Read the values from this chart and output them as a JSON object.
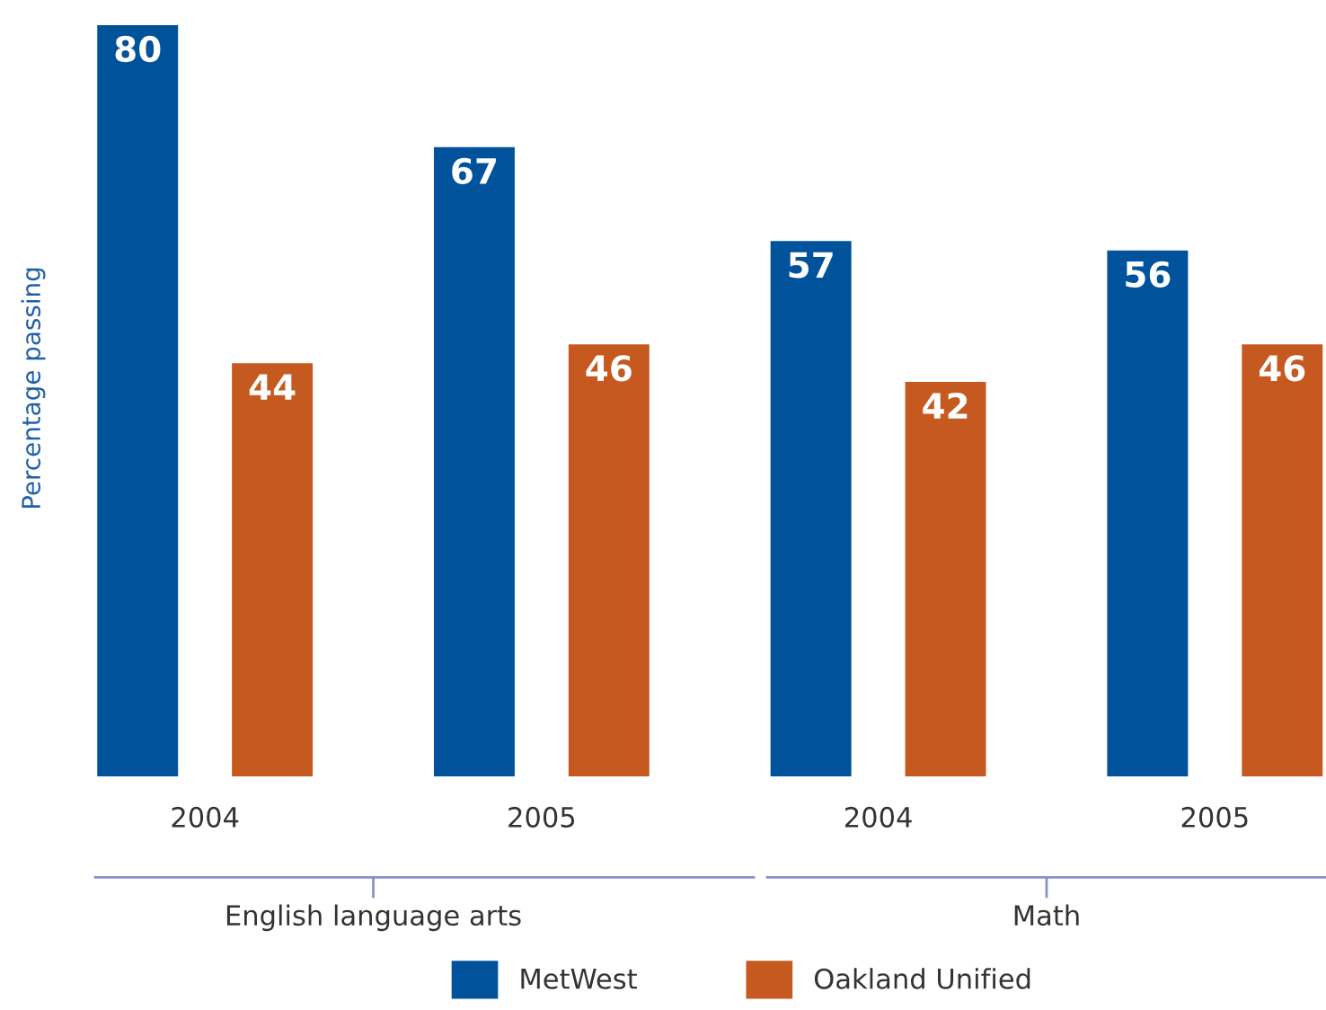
{
  "chart_data": {
    "type": "bar",
    "ylabel": "Percentage passing",
    "categories": [
      "2004",
      "2005",
      "2004",
      "2005"
    ],
    "series": [
      {
        "name": "MetWest",
        "color": "#00529b",
        "values": [
          80,
          67,
          57,
          56
        ]
      },
      {
        "name": "Oakland Unified",
        "color": "#c5591f",
        "values": [
          44,
          46,
          42,
          46
        ]
      }
    ],
    "annotations": [
      "English language arts",
      "Math"
    ],
    "data_labels": true,
    "grid": false,
    "legend": "bottom"
  }
}
